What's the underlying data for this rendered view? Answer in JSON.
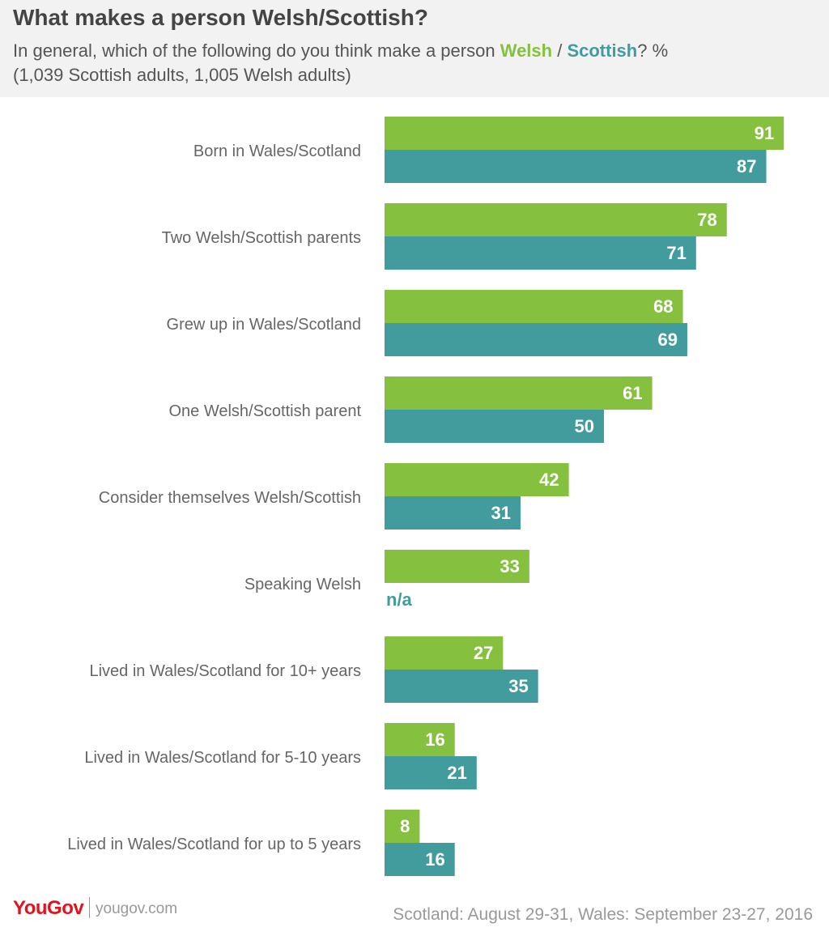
{
  "header": {
    "title": "What makes a person Welsh/Scottish?",
    "subtitle_prefix": "In general, which of the following do you think make a person ",
    "subtitle_welsh": "Welsh",
    "subtitle_sep": " / ",
    "subtitle_scottish": "Scottish",
    "subtitle_suffix": "? %",
    "subtitle_line2": "(1,039 Scottish adults, 1,005 Welsh adults)"
  },
  "footer": {
    "brand": "YouGov",
    "site": "yougov.com",
    "dates": "Scotland: August 29-31, Wales: September 23-27, 2016"
  },
  "colors": {
    "welsh": "#85c13e",
    "scottish": "#429c9e"
  },
  "chart_data": {
    "type": "bar",
    "orientation": "horizontal",
    "categories": [
      "Born in Wales/Scotland",
      "Two Welsh/Scottish parents",
      "Grew up in Wales/Scotland",
      "One Welsh/Scottish parent",
      "Consider themselves Welsh/Scottish",
      "Speaking Welsh",
      "Lived in Wales/Scotland for 10+ years",
      "Lived in Wales/Scotland for 5-10 years",
      "Lived in Wales/Scotland for up to 5 years"
    ],
    "series": [
      {
        "name": "Welsh",
        "color": "#85c13e",
        "values": [
          91,
          78,
          68,
          61,
          42,
          33,
          27,
          16,
          8
        ]
      },
      {
        "name": "Scottish",
        "color": "#429c9e",
        "values": [
          87,
          71,
          69,
          50,
          31,
          null,
          35,
          21,
          16
        ]
      }
    ],
    "missing_label": "n/a",
    "xlim": [
      0,
      100
    ],
    "grid": false,
    "data_labels": true
  }
}
